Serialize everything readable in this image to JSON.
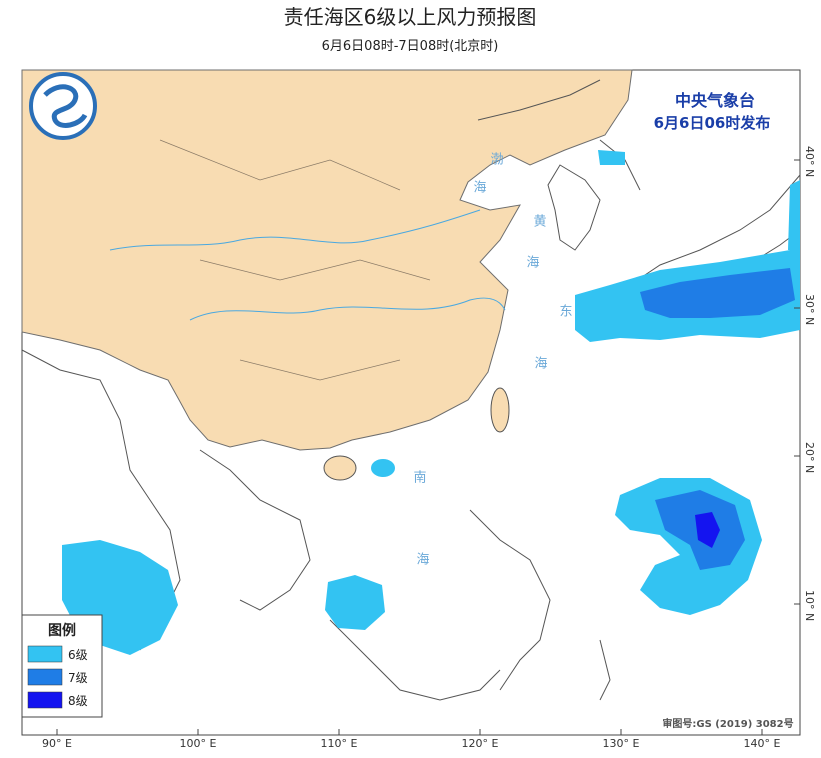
{
  "header": {
    "title": "责任海区6级以上风力预报图",
    "subtitle": "6月6日08时-7日08时(北京时)"
  },
  "issuer": {
    "name": "中央气象台",
    "time": "6月6日06时发布"
  },
  "legend": {
    "title": "图例",
    "items": [
      {
        "label": "6级",
        "color": "#33c3f2"
      },
      {
        "label": "7级",
        "color": "#1f7de6"
      },
      {
        "label": "8级",
        "color": "#1414f0"
      }
    ]
  },
  "sea_labels": [
    "渤",
    "海",
    "黄",
    "海",
    "东",
    "海",
    "南",
    "海"
  ],
  "lon_labels": [
    "90° E",
    "100° E",
    "110° E",
    "120° E",
    "130° E",
    "140° E"
  ],
  "lat_labels": [
    "40° N",
    "30° N",
    "20° N",
    "10° N"
  ],
  "footer": {
    "approval": "审图号:GS (2019) 3082号"
  }
}
